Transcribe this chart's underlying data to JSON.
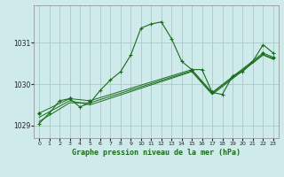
{
  "title": "Graphe pression niveau de la mer (hPa)",
  "background_color": "#ceeaea",
  "grid_color": "#aacaca",
  "line_color": "#1a6b1a",
  "xlim": [
    -0.5,
    23.5
  ],
  "ylim": [
    1028.7,
    1031.9
  ],
  "yticks": [
    1029,
    1030,
    1031
  ],
  "xticks": [
    0,
    1,
    2,
    3,
    4,
    5,
    6,
    7,
    8,
    9,
    10,
    11,
    12,
    13,
    14,
    15,
    16,
    17,
    18,
    19,
    20,
    21,
    22,
    23
  ],
  "series1_x": [
    0,
    1,
    2,
    3,
    4,
    5,
    6,
    7,
    8,
    9,
    10,
    11,
    12,
    13,
    14,
    15,
    16,
    17,
    18,
    19,
    20,
    21,
    22,
    23
  ],
  "series1_y": [
    1029.05,
    1029.3,
    1029.6,
    1029.65,
    1029.45,
    1029.55,
    1029.85,
    1030.1,
    1030.3,
    1030.7,
    1031.35,
    1031.45,
    1031.5,
    1031.1,
    1030.55,
    1030.35,
    1030.35,
    1029.8,
    1029.75,
    1030.2,
    1030.3,
    1030.55,
    1030.95,
    1030.75
  ],
  "series2_x": [
    0,
    3,
    5,
    15,
    17,
    22,
    23
  ],
  "series2_y": [
    1029.3,
    1029.65,
    1029.6,
    1030.35,
    1029.8,
    1030.75,
    1030.65
  ],
  "series3_x": [
    0,
    3,
    5,
    15,
    17,
    22,
    23
  ],
  "series3_y": [
    1029.2,
    1029.6,
    1029.5,
    1030.3,
    1029.75,
    1030.7,
    1030.6
  ],
  "series4_x": [
    0,
    3,
    5,
    15,
    17,
    22,
    23
  ],
  "series4_y": [
    1029.1,
    1029.55,
    1029.55,
    1030.32,
    1029.78,
    1030.72,
    1030.62
  ]
}
